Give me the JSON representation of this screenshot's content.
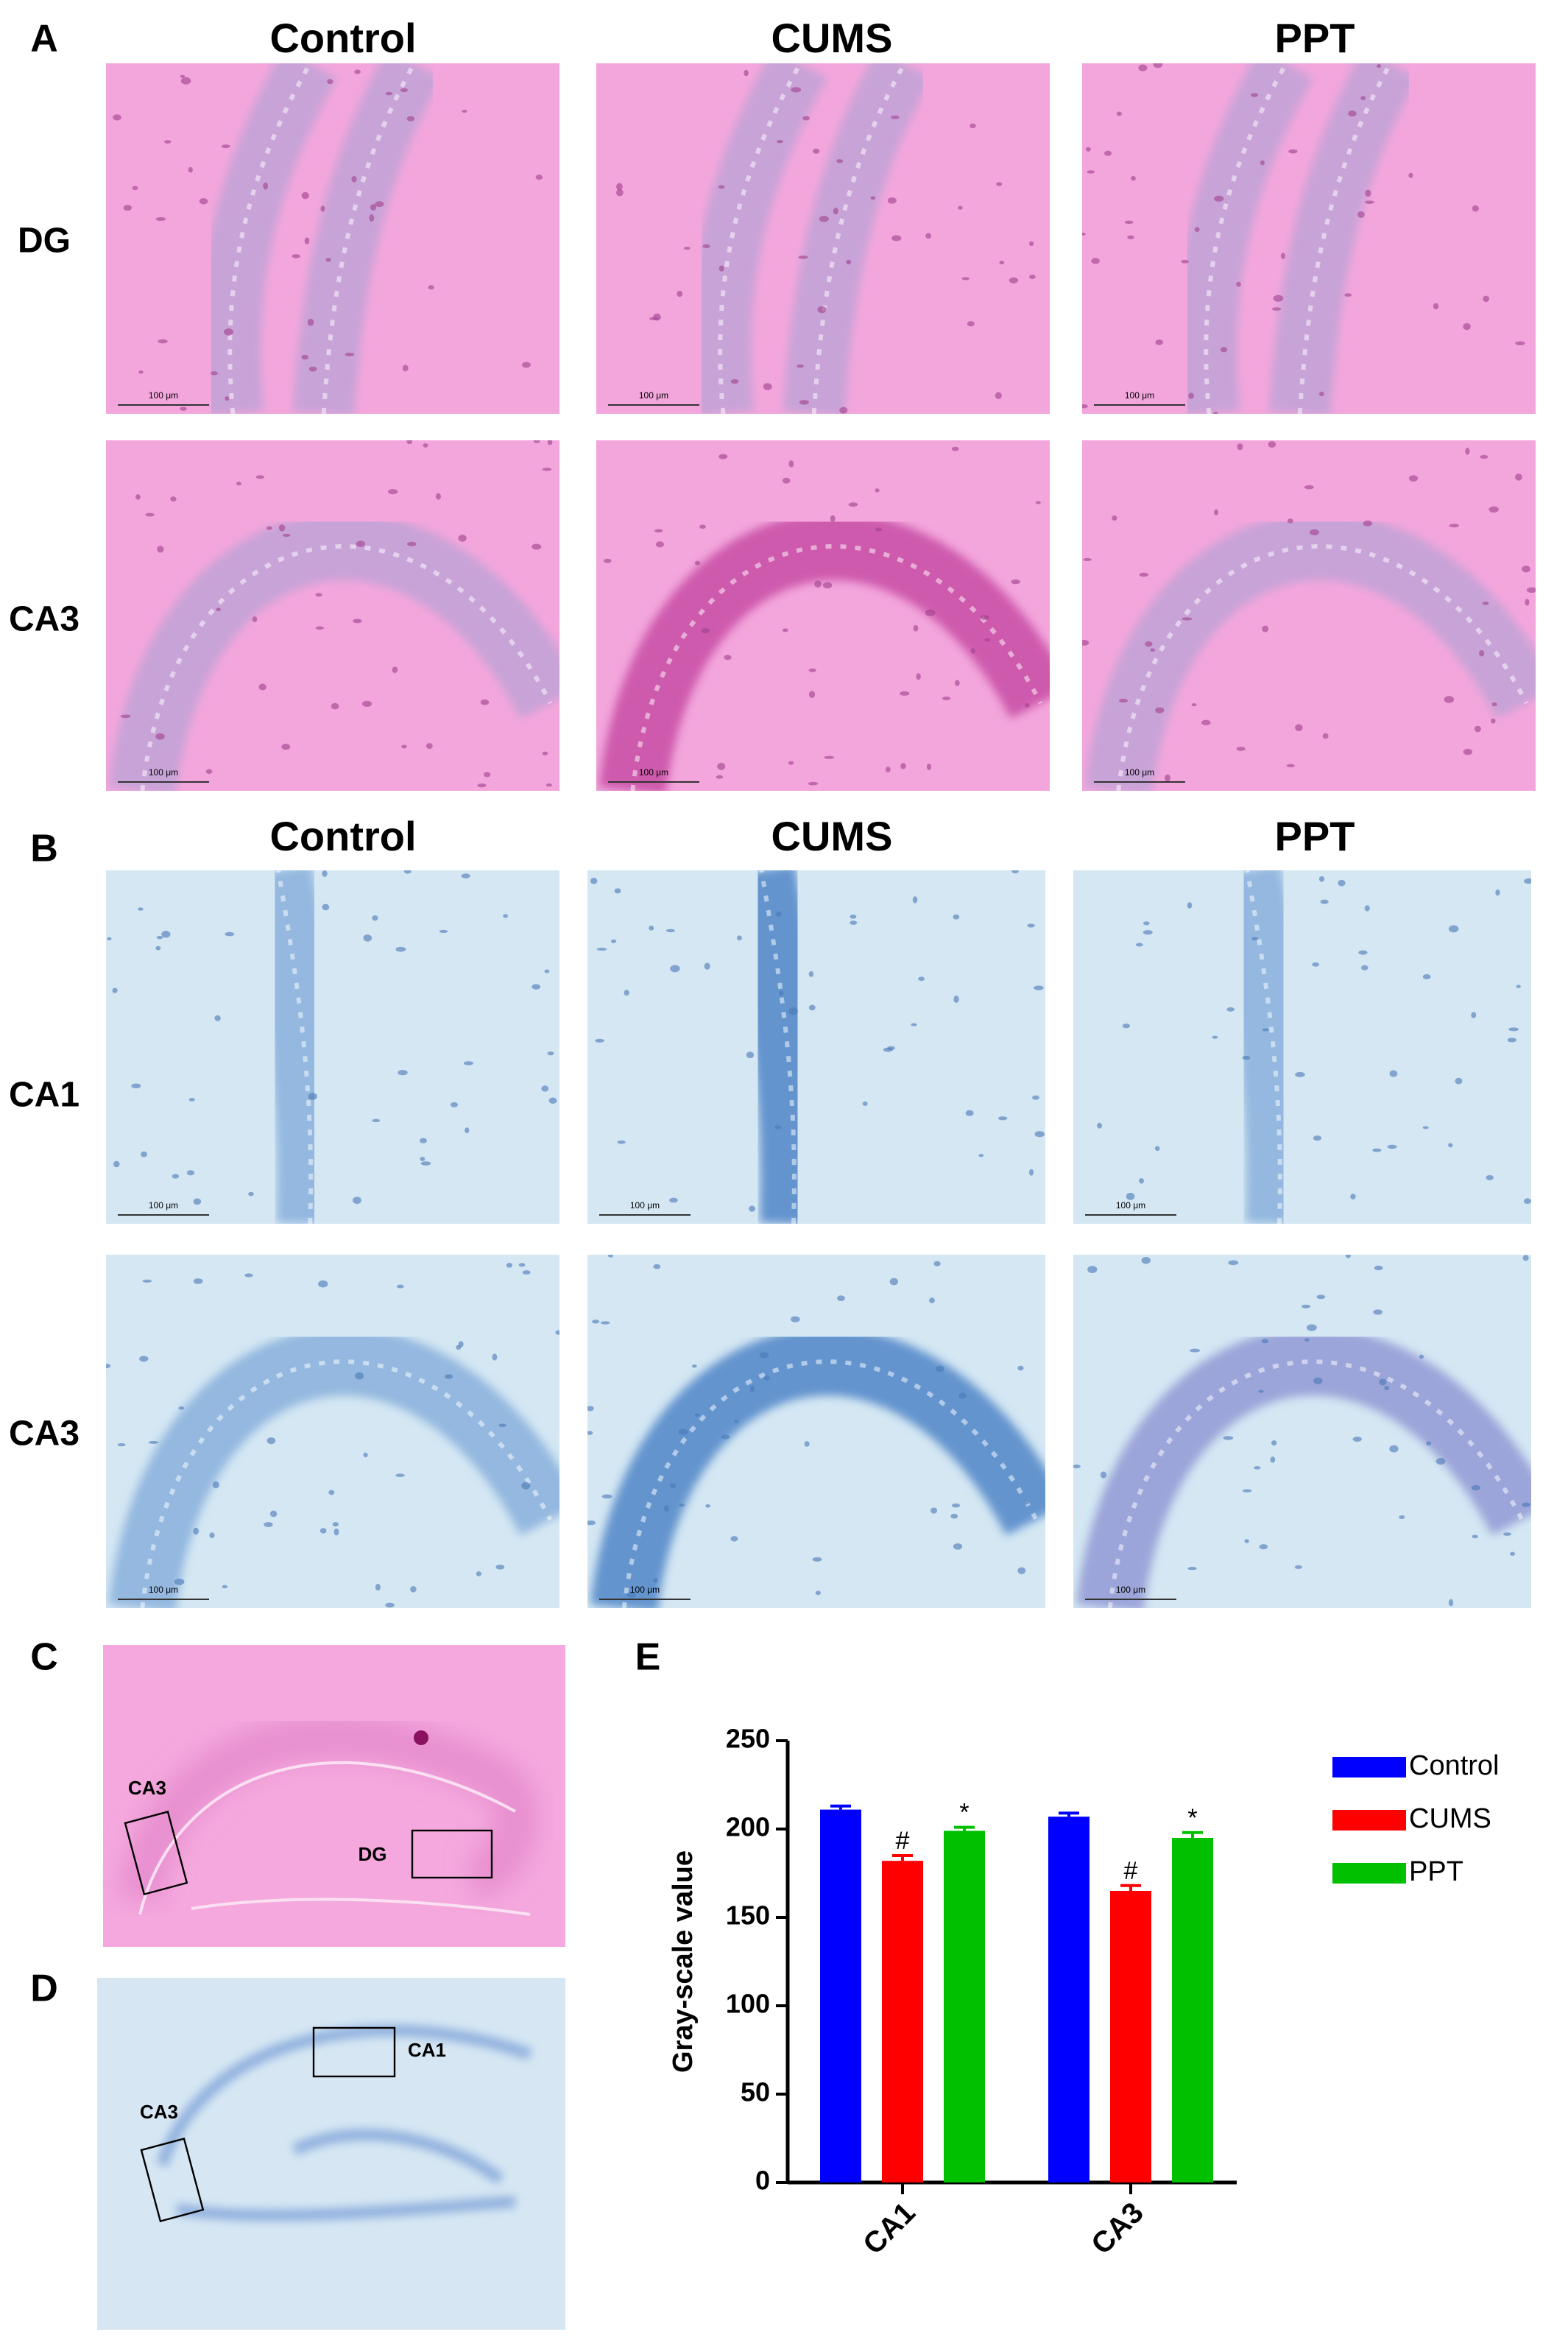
{
  "panel_labels": [
    "A",
    "B",
    "C",
    "D",
    "E"
  ],
  "panel_a": {
    "columns": [
      "Control",
      "CUMS",
      "PPT"
    ],
    "rows": [
      "DG",
      "CA3"
    ]
  },
  "panel_b": {
    "columns": [
      "Control",
      "CUMS",
      "PPT"
    ],
    "rows": [
      "CA1",
      "CA3"
    ]
  },
  "scale_bar": "100 μm",
  "panel_c": {
    "labels": [
      "CA3",
      "DG"
    ]
  },
  "panel_d": {
    "labels": [
      "CA1",
      "CA3"
    ]
  },
  "chart_data": {
    "type": "bar",
    "ylabel": "Gray-scale value",
    "categories": [
      "CA1",
      "CA3"
    ],
    "series": [
      {
        "name": "Control",
        "color": "#0000ff",
        "values": [
          211,
          207
        ],
        "errors": [
          2,
          2
        ]
      },
      {
        "name": "CUMS",
        "color": "#ff0000",
        "values": [
          182,
          165
        ],
        "errors": [
          3,
          3
        ],
        "annotations": [
          "#",
          "#"
        ]
      },
      {
        "name": "PPT",
        "color": "#00c000",
        "values": [
          199,
          195
        ],
        "errors": [
          2,
          3
        ],
        "annotations": [
          "*",
          "*"
        ]
      }
    ],
    "ylim": [
      0,
      250
    ],
    "yticks": [
      0,
      50,
      100,
      150,
      200,
      250
    ],
    "legend": "right"
  }
}
